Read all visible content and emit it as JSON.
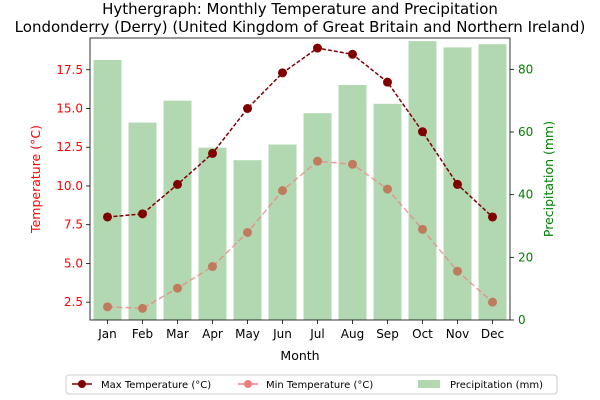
{
  "chart_data": {
    "type": "bar+line",
    "title_lines": [
      "Hythergraph: Monthly Temperature and Precipitation",
      "Londonderry (Derry) (United Kingdom of Great Britain and Northern Ireland)"
    ],
    "xlabel": "Month",
    "ylabel_left": "Temperature (°C)",
    "ylabel_right": "Precipitation (mm)",
    "categories": [
      "Jan",
      "Feb",
      "Mar",
      "Apr",
      "May",
      "Jun",
      "Jul",
      "Aug",
      "Sep",
      "Oct",
      "Nov",
      "Dec"
    ],
    "left_axis": {
      "ylim": [
        1.35,
        19.55
      ],
      "ticks": [
        2.5,
        5.0,
        7.5,
        10.0,
        12.5,
        15.0,
        17.5
      ],
      "tick_labels": [
        "2.5",
        "5.0",
        "7.5",
        "10.0",
        "12.5",
        "15.0",
        "17.5"
      ],
      "color": "#ff0000"
    },
    "right_axis": {
      "ylim": [
        0,
        90
      ],
      "ticks": [
        0,
        20,
        40,
        60,
        80
      ],
      "tick_labels": [
        "0",
        "20",
        "40",
        "60",
        "80"
      ],
      "color": "#008000"
    },
    "series": [
      {
        "name": "Max Temperature (°C)",
        "type": "line",
        "axis": "left",
        "color": "#800000",
        "values": [
          8.0,
          8.2,
          10.1,
          12.1,
          15.0,
          17.3,
          18.9,
          18.5,
          16.7,
          13.5,
          10.1,
          8.0
        ]
      },
      {
        "name": "Min Temperature (°C)",
        "type": "line",
        "axis": "left",
        "color": "#f08080",
        "values": [
          2.2,
          2.1,
          3.4,
          4.8,
          7.0,
          9.7,
          11.6,
          11.4,
          9.8,
          7.2,
          4.5,
          2.5
        ]
      },
      {
        "name": "Precipitation (mm)",
        "type": "bar",
        "axis": "right",
        "color": "#b2d8b2",
        "values": [
          83,
          63,
          70,
          55,
          51,
          56,
          66,
          75,
          69,
          89,
          87,
          88
        ]
      }
    ],
    "legend": {
      "placement": "bottom-center",
      "entries": [
        "Max Temperature (°C)",
        "Min Temperature (°C)",
        "Precipitation (mm)"
      ]
    }
  }
}
